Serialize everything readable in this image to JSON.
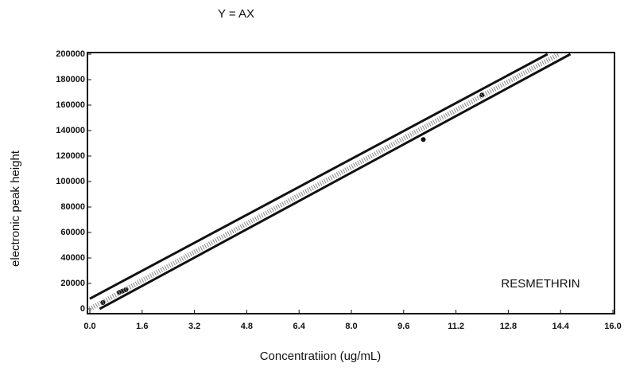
{
  "chart_data": {
    "type": "scatter",
    "title": "Y = AX",
    "xlabel": "Concentratiion (ug/mL)",
    "ylabel": "electronic peak height",
    "annotation": "RESMETHRIN",
    "xlim": [
      0,
      16
    ],
    "ylim": [
      0,
      200000
    ],
    "xticks": [
      {
        "value": 0,
        "label": "0.0"
      },
      1.6,
      3.2,
      4.8,
      6.4,
      {
        "value": 8,
        "label": "8.0"
      },
      9.6,
      11.2,
      12.8,
      14.4,
      {
        "value": 16,
        "label": "16.0"
      }
    ],
    "yticks": [
      0,
      20000,
      40000,
      60000,
      80000,
      100000,
      120000,
      140000,
      160000,
      180000,
      200000
    ],
    "series": [
      {
        "name": "data",
        "kind": "points",
        "color": "#111111",
        "x": [
          0.4,
          0.9,
          1.0,
          1.1,
          10.2,
          12.0
        ],
        "values": [
          5000,
          13000,
          14000,
          15000,
          133000,
          168000
        ]
      },
      {
        "name": "fit",
        "kind": "dotted",
        "color": "#888888",
        "x": [
          0,
          14.35
        ],
        "values": [
          0,
          200000
        ]
      },
      {
        "name": "upper",
        "kind": "solid",
        "color": "#111111",
        "x": [
          0,
          14.0
        ],
        "values": [
          8000,
          200000
        ]
      },
      {
        "name": "lower",
        "kind": "solid",
        "color": "#111111",
        "x": [
          0.3,
          14.7
        ],
        "values": [
          0,
          200000
        ]
      }
    ]
  }
}
